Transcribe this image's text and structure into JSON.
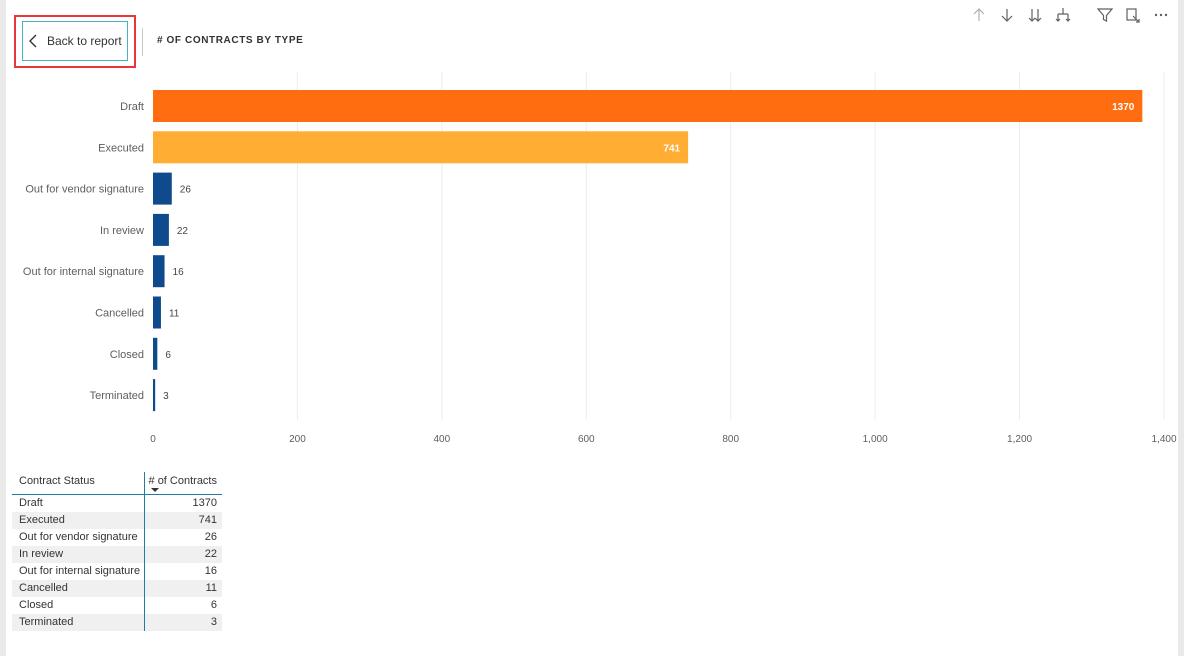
{
  "header": {
    "back_label": "Back to report",
    "title": "# OF CONTRACTS BY TYPE"
  },
  "toolbar": {
    "icons": [
      "arrow-up-icon",
      "arrow-down-icon",
      "double-arrow-down-icon",
      "expand-hierarchy-icon",
      "filter-icon",
      "focus-mode-icon",
      "more-options-icon"
    ]
  },
  "colors": {
    "draft": "#ff6d10",
    "executed": "#ffad33",
    "other": "#0e4a8c",
    "back_border": "#41b5c4",
    "highlight": "#e8363a"
  },
  "chart_data": {
    "type": "bar",
    "orientation": "horizontal",
    "title": "# OF CONTRACTS BY TYPE",
    "categories": [
      "Draft",
      "Executed",
      "Out for vendor signature",
      "In review",
      "Out for internal signature",
      "Cancelled",
      "Closed",
      "Terminated"
    ],
    "values": [
      1370,
      741,
      26,
      22,
      16,
      11,
      6,
      3
    ],
    "bar_colors": [
      "#ff6d10",
      "#ffad33",
      "#0e4a8c",
      "#0e4a8c",
      "#0e4a8c",
      "#0e4a8c",
      "#0e4a8c",
      "#0e4a8c"
    ],
    "xticks": [
      "0",
      "200",
      "400",
      "600",
      "800",
      "1,000",
      "1,200",
      "1,400"
    ],
    "xlim": [
      0,
      1400
    ],
    "grid": true
  },
  "table": {
    "headers": [
      "Contract Status",
      "# of Contracts"
    ],
    "rows": [
      [
        "Draft",
        "1370"
      ],
      [
        "Executed",
        "741"
      ],
      [
        "Out for vendor signature",
        "26"
      ],
      [
        "In review",
        "22"
      ],
      [
        "Out for internal signature",
        "16"
      ],
      [
        "Cancelled",
        "11"
      ],
      [
        "Closed",
        "6"
      ],
      [
        "Terminated",
        "3"
      ]
    ]
  }
}
